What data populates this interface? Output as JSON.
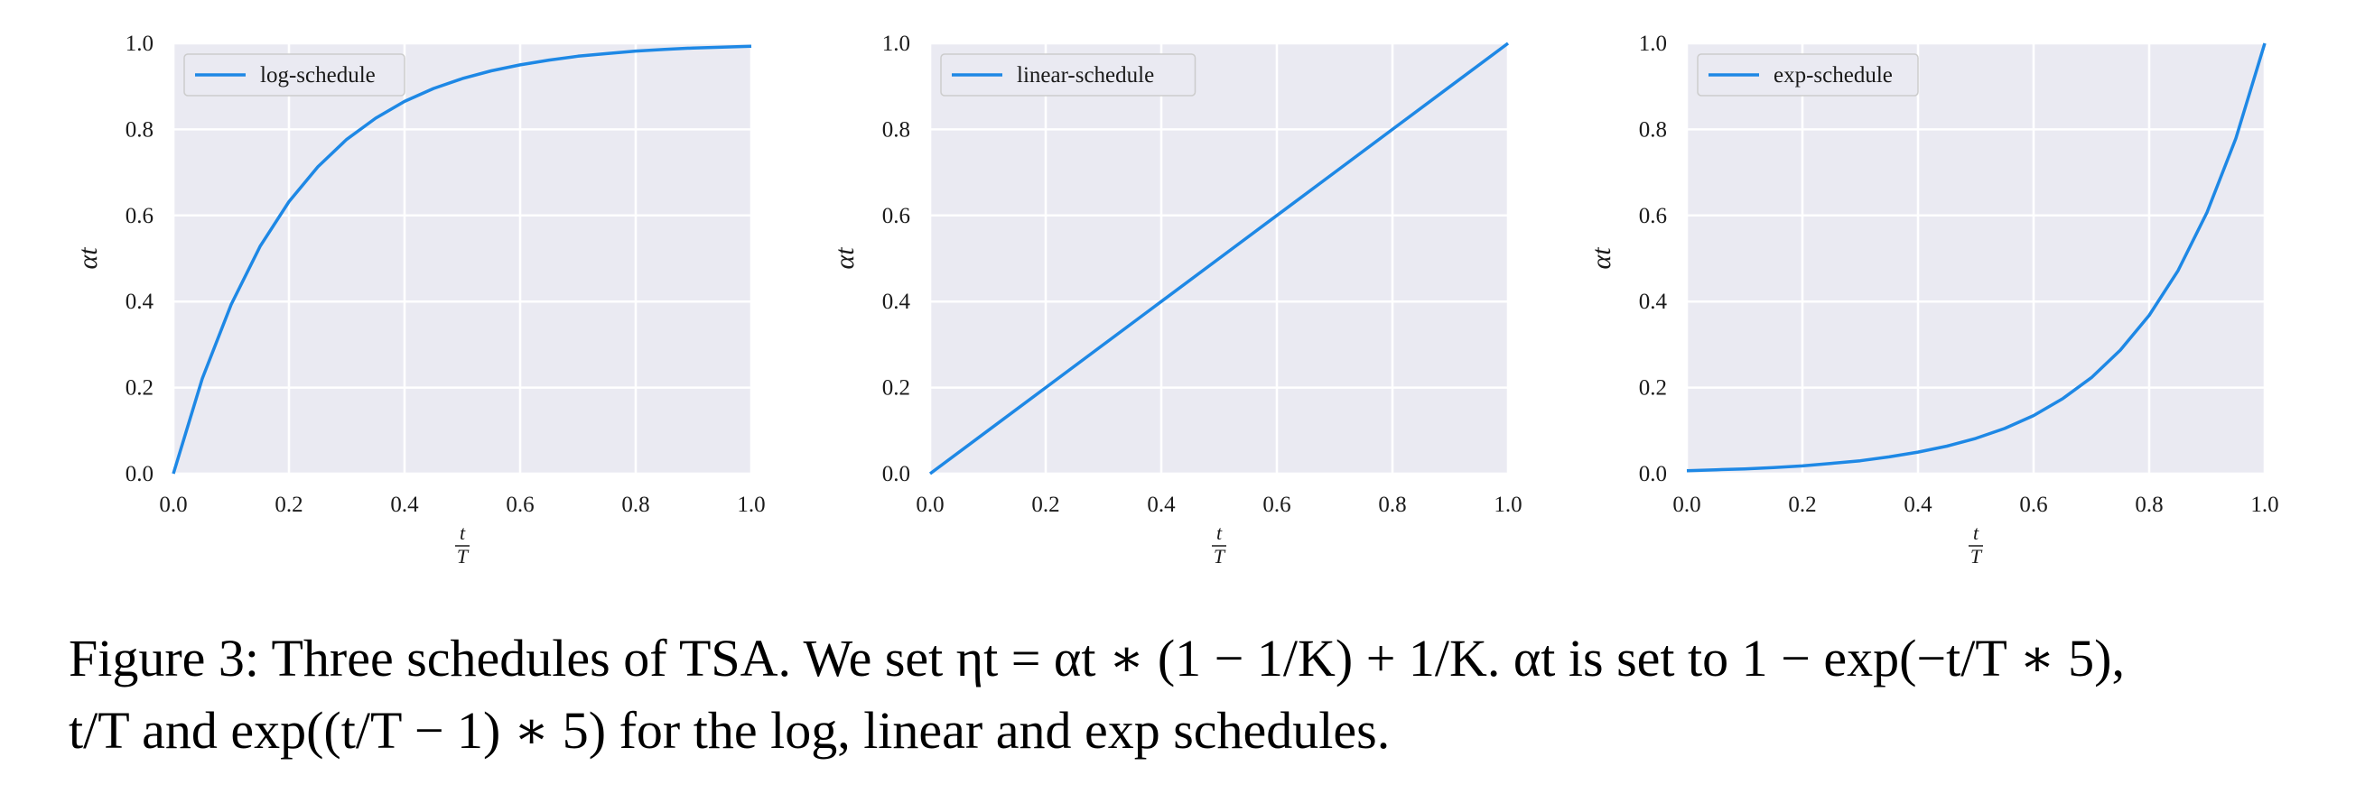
{
  "figure": {
    "caption_line1": "Figure 3: Three schedules of TSA. We set ηt = αt ∗ (1 − 1/K) + 1/K. αt is set to 1 − exp(−t/T ∗ 5),",
    "caption_line2": "t/T and exp((t/T − 1) ∗ 5) for the log, linear and exp schedules."
  },
  "colors": {
    "line": "#1e88e5",
    "plot_bg": "#eaeaf2",
    "grid": "#ffffff",
    "text": "#1a1a1a"
  },
  "chart_data": [
    {
      "type": "line",
      "title": "",
      "xlabel": "t/T",
      "ylabel": "αt",
      "xlim": [
        0,
        1
      ],
      "ylim": [
        0,
        1
      ],
      "xticks": [
        "0.0",
        "0.2",
        "0.4",
        "0.6",
        "0.8",
        "1.0"
      ],
      "yticks": [
        "0.0",
        "0.2",
        "0.4",
        "0.6",
        "0.8",
        "1.0"
      ],
      "grid": true,
      "legend": {
        "position": "top-left",
        "entries": [
          "log-schedule"
        ]
      },
      "series": [
        {
          "name": "log-schedule",
          "x": [
            0,
            0.05,
            0.1,
            0.15,
            0.2,
            0.25,
            0.3,
            0.35,
            0.4,
            0.45,
            0.5,
            0.55,
            0.6,
            0.65,
            0.7,
            0.75,
            0.8,
            0.85,
            0.9,
            0.95,
            1.0
          ],
          "y": [
            0.0,
            0.221,
            0.393,
            0.528,
            0.632,
            0.713,
            0.777,
            0.826,
            0.865,
            0.895,
            0.918,
            0.936,
            0.95,
            0.961,
            0.97,
            0.976,
            0.982,
            0.986,
            0.989,
            0.991,
            0.993
          ]
        }
      ]
    },
    {
      "type": "line",
      "title": "",
      "xlabel": "t/T",
      "ylabel": "αt",
      "xlim": [
        0,
        1
      ],
      "ylim": [
        0,
        1
      ],
      "xticks": [
        "0.0",
        "0.2",
        "0.4",
        "0.6",
        "0.8",
        "1.0"
      ],
      "yticks": [
        "0.0",
        "0.2",
        "0.4",
        "0.6",
        "0.8",
        "1.0"
      ],
      "grid": true,
      "legend": {
        "position": "top-left",
        "entries": [
          "linear-schedule"
        ]
      },
      "series": [
        {
          "name": "linear-schedule",
          "x": [
            0,
            0.1,
            0.2,
            0.3,
            0.4,
            0.5,
            0.6,
            0.7,
            0.8,
            0.9,
            1.0
          ],
          "y": [
            0,
            0.1,
            0.2,
            0.3,
            0.4,
            0.5,
            0.6,
            0.7,
            0.8,
            0.9,
            1.0
          ]
        }
      ]
    },
    {
      "type": "line",
      "title": "",
      "xlabel": "t/T",
      "ylabel": "αt",
      "xlim": [
        0,
        1
      ],
      "ylim": [
        0,
        1
      ],
      "xticks": [
        "0.0",
        "0.2",
        "0.4",
        "0.6",
        "0.8",
        "1.0"
      ],
      "yticks": [
        "0.0",
        "0.2",
        "0.4",
        "0.6",
        "0.8",
        "1.0"
      ],
      "grid": true,
      "legend": {
        "position": "top-left",
        "entries": [
          "exp-schedule"
        ]
      },
      "series": [
        {
          "name": "exp-schedule",
          "x": [
            0,
            0.05,
            0.1,
            0.15,
            0.2,
            0.25,
            0.3,
            0.35,
            0.4,
            0.45,
            0.5,
            0.55,
            0.6,
            0.65,
            0.7,
            0.75,
            0.8,
            0.85,
            0.9,
            0.95,
            1.0
          ],
          "y": [
            0.007,
            0.009,
            0.011,
            0.014,
            0.018,
            0.024,
            0.03,
            0.039,
            0.05,
            0.064,
            0.082,
            0.105,
            0.135,
            0.174,
            0.223,
            0.287,
            0.368,
            0.472,
            0.607,
            0.779,
            1.0
          ]
        }
      ]
    }
  ]
}
